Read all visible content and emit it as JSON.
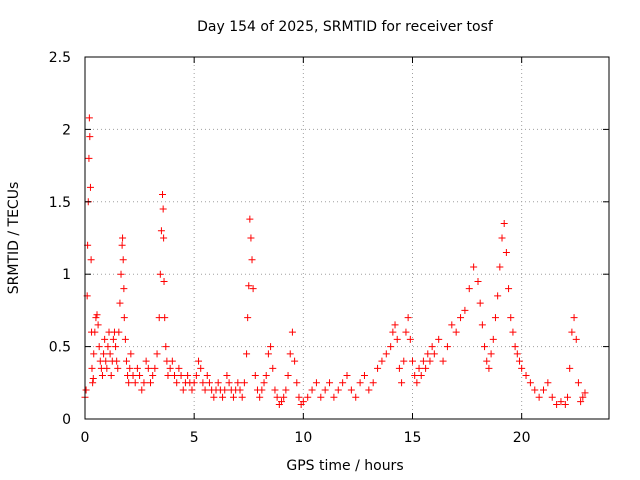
{
  "chart_data": {
    "type": "scatter",
    "title": "Day 154 of 2025, SRMTID for receiver tosf",
    "xlabel": "GPS time / hours",
    "ylabel": "SRMTID / TECUs",
    "xlim": [
      0,
      24
    ],
    "ylim": [
      0,
      2.5
    ],
    "xticks": [
      0,
      5,
      10,
      15,
      20
    ],
    "yticks": [
      0,
      0.5,
      1,
      1.5,
      2,
      2.5
    ],
    "xtick_labels": [
      "0",
      "5",
      "10",
      "15",
      "20"
    ],
    "ytick_labels": [
      "0",
      "0.5",
      "1",
      "1.5",
      "2",
      "2.5"
    ],
    "grid": true,
    "marker": "+",
    "color": "#ff0000",
    "series": [
      {
        "name": "SRMTID",
        "x": [
          0.0,
          0.05,
          0.1,
          0.12,
          0.15,
          0.18,
          0.2,
          0.22,
          0.25,
          0.28,
          0.3,
          0.32,
          0.35,
          0.38,
          0.4,
          0.45,
          0.5,
          0.55,
          0.6,
          0.65,
          0.7,
          0.75,
          0.8,
          0.85,
          0.9,
          0.95,
          1.0,
          1.05,
          1.1,
          1.15,
          1.2,
          1.25,
          1.3,
          1.35,
          1.4,
          1.45,
          1.5,
          1.55,
          1.6,
          1.65,
          1.7,
          1.72,
          1.75,
          1.78,
          1.8,
          1.85,
          1.9,
          1.95,
          2.0,
          2.05,
          2.1,
          2.2,
          2.3,
          2.4,
          2.5,
          2.6,
          2.7,
          2.8,
          2.9,
          3.0,
          3.1,
          3.2,
          3.3,
          3.4,
          3.45,
          3.5,
          3.55,
          3.58,
          3.6,
          3.62,
          3.65,
          3.7,
          3.75,
          3.8,
          3.9,
          4.0,
          4.1,
          4.2,
          4.3,
          4.4,
          4.5,
          4.6,
          4.7,
          4.8,
          4.9,
          5.0,
          5.1,
          5.2,
          5.3,
          5.4,
          5.5,
          5.6,
          5.7,
          5.8,
          5.9,
          6.0,
          6.1,
          6.2,
          6.3,
          6.4,
          6.5,
          6.6,
          6.7,
          6.8,
          6.9,
          7.0,
          7.1,
          7.2,
          7.3,
          7.4,
          7.45,
          7.5,
          7.55,
          7.6,
          7.65,
          7.7,
          7.8,
          7.9,
          8.0,
          8.1,
          8.2,
          8.3,
          8.4,
          8.5,
          8.6,
          8.7,
          8.8,
          8.9,
          9.0,
          9.1,
          9.2,
          9.3,
          9.4,
          9.5,
          9.6,
          9.7,
          9.8,
          9.9,
          10.0,
          10.2,
          10.4,
          10.6,
          10.8,
          11.0,
          11.2,
          11.4,
          11.6,
          11.8,
          12.0,
          12.2,
          12.4,
          12.6,
          12.8,
          13.0,
          13.2,
          13.4,
          13.6,
          13.8,
          14.0,
          14.1,
          14.2,
          14.3,
          14.4,
          14.5,
          14.6,
          14.7,
          14.8,
          14.9,
          15.0,
          15.1,
          15.2,
          15.3,
          15.4,
          15.5,
          15.6,
          15.7,
          15.8,
          15.9,
          16.0,
          16.2,
          16.4,
          16.6,
          16.8,
          17.0,
          17.2,
          17.4,
          17.6,
          17.8,
          18.0,
          18.1,
          18.2,
          18.3,
          18.4,
          18.5,
          18.6,
          18.7,
          18.8,
          18.9,
          19.0,
          19.1,
          19.2,
          19.3,
          19.4,
          19.5,
          19.6,
          19.7,
          19.8,
          19.9,
          20.0,
          20.2,
          20.4,
          20.6,
          20.8,
          21.0,
          21.2,
          21.4,
          21.6,
          21.8,
          22.0,
          22.1,
          22.2,
          22.3,
          22.4,
          22.5,
          22.6,
          22.7,
          22.8,
          22.9
        ],
        "y": [
          0.15,
          0.2,
          0.85,
          1.2,
          1.5,
          1.8,
          2.08,
          1.95,
          1.6,
          1.1,
          0.6,
          0.35,
          0.25,
          0.28,
          0.45,
          0.6,
          0.7,
          0.72,
          0.65,
          0.5,
          0.4,
          0.35,
          0.3,
          0.45,
          0.55,
          0.4,
          0.35,
          0.5,
          0.6,
          0.45,
          0.3,
          0.4,
          0.55,
          0.6,
          0.5,
          0.4,
          0.35,
          0.6,
          0.8,
          1.0,
          1.2,
          1.25,
          1.1,
          0.9,
          0.7,
          0.55,
          0.4,
          0.3,
          0.25,
          0.35,
          0.45,
          0.3,
          0.25,
          0.35,
          0.3,
          0.2,
          0.25,
          0.4,
          0.35,
          0.25,
          0.3,
          0.35,
          0.45,
          0.7,
          1.0,
          1.3,
          1.55,
          1.45,
          1.25,
          0.95,
          0.7,
          0.5,
          0.4,
          0.3,
          0.35,
          0.4,
          0.3,
          0.25,
          0.35,
          0.3,
          0.2,
          0.25,
          0.3,
          0.25,
          0.2,
          0.25,
          0.3,
          0.4,
          0.35,
          0.25,
          0.2,
          0.3,
          0.25,
          0.2,
          0.15,
          0.2,
          0.25,
          0.2,
          0.15,
          0.2,
          0.3,
          0.25,
          0.2,
          0.15,
          0.2,
          0.25,
          0.2,
          0.15,
          0.25,
          0.45,
          0.7,
          0.92,
          1.38,
          1.25,
          1.1,
          0.9,
          0.3,
          0.2,
          0.15,
          0.2,
          0.25,
          0.3,
          0.45,
          0.5,
          0.35,
          0.2,
          0.15,
          0.1,
          0.12,
          0.15,
          0.2,
          0.3,
          0.45,
          0.6,
          0.4,
          0.25,
          0.15,
          0.1,
          0.12,
          0.15,
          0.2,
          0.25,
          0.15,
          0.2,
          0.25,
          0.15,
          0.2,
          0.25,
          0.3,
          0.2,
          0.15,
          0.25,
          0.3,
          0.2,
          0.25,
          0.35,
          0.4,
          0.45,
          0.5,
          0.6,
          0.65,
          0.55,
          0.35,
          0.25,
          0.4,
          0.6,
          0.7,
          0.55,
          0.4,
          0.3,
          0.25,
          0.35,
          0.3,
          0.4,
          0.35,
          0.45,
          0.4,
          0.5,
          0.45,
          0.55,
          0.4,
          0.5,
          0.65,
          0.6,
          0.7,
          0.75,
          0.9,
          1.05,
          0.95,
          0.8,
          0.65,
          0.5,
          0.4,
          0.35,
          0.45,
          0.55,
          0.7,
          0.85,
          1.05,
          1.25,
          1.35,
          1.15,
          0.9,
          0.7,
          0.6,
          0.5,
          0.45,
          0.4,
          0.35,
          0.3,
          0.25,
          0.2,
          0.15,
          0.2,
          0.25,
          0.15,
          0.1,
          0.12,
          0.1,
          0.15,
          0.35,
          0.6,
          0.7,
          0.55,
          0.25,
          0.12,
          0.15,
          0.18
        ]
      }
    ]
  }
}
